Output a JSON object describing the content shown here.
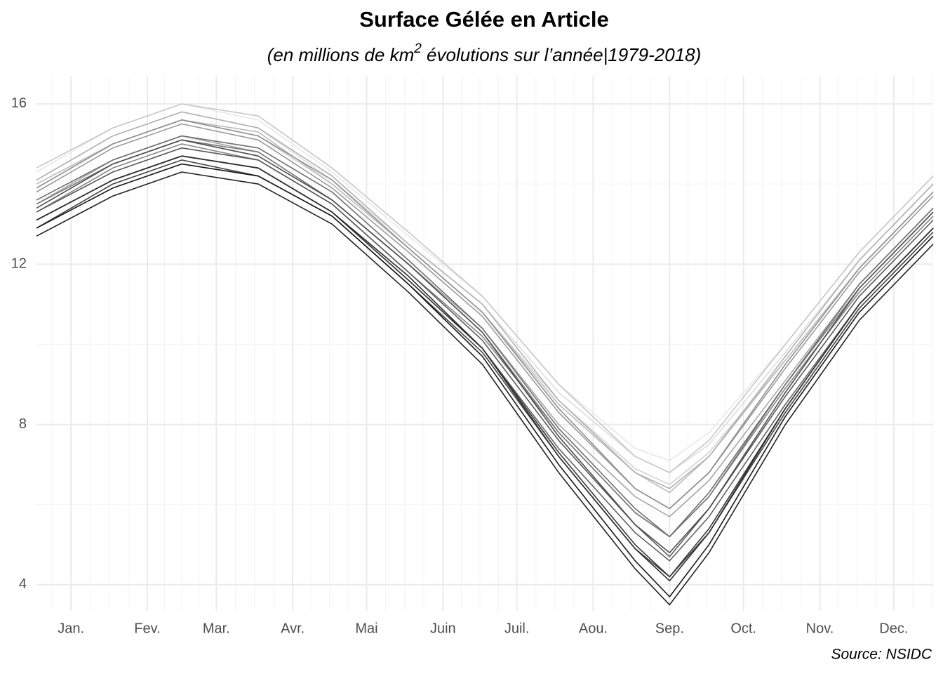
{
  "chart_data": {
    "type": "line",
    "title": "Surface Gélée en Article",
    "subtitle": [
      "(en millions de km",
      "2",
      " évolutions sur l’année|1979-2018)"
    ],
    "source": "Source: NSIDC",
    "x": [
      1,
      32,
      60,
      91,
      121,
      152,
      182,
      213,
      244,
      258,
      274,
      305,
      335,
      365
    ],
    "xlim": [
      1,
      365
    ],
    "xticks": [
      {
        "value": 15,
        "label": "Jan."
      },
      {
        "value": 46,
        "label": "Fev."
      },
      {
        "value": 74,
        "label": "Mar."
      },
      {
        "value": 105,
        "label": "Avr."
      },
      {
        "value": 135,
        "label": "Mai"
      },
      {
        "value": 166,
        "label": "Juin"
      },
      {
        "value": 196,
        "label": "Juil."
      },
      {
        "value": 227,
        "label": "Aou."
      },
      {
        "value": 258,
        "label": "Sep."
      },
      {
        "value": 288,
        "label": "Oct."
      },
      {
        "value": 319,
        "label": "Nov."
      },
      {
        "value": 349,
        "label": "Dec."
      }
    ],
    "ylim": [
      3.35,
      16.7
    ],
    "yticks": [
      4,
      8,
      12,
      16
    ],
    "yminor": [
      6,
      10,
      14
    ],
    "grid": true,
    "series": [
      {
        "color": "#e8e8e8",
        "values": [
          14.3,
          15.4,
          16.0,
          15.6,
          14.3,
          12.7,
          11.2,
          9.0,
          7.4,
          7.1,
          7.8,
          10.0,
          12.3,
          14.2
        ]
      },
      {
        "color": "#dddddd",
        "values": [
          14.1,
          15.2,
          15.8,
          15.4,
          14.1,
          12.5,
          11.0,
          8.8,
          7.2,
          6.8,
          7.5,
          9.8,
          12.1,
          14.0
        ]
      },
      {
        "color": "#d2d2d2",
        "values": [
          13.9,
          15.0,
          15.6,
          15.2,
          14.0,
          12.4,
          10.8,
          8.6,
          6.9,
          6.5,
          7.3,
          9.6,
          11.9,
          13.8
        ]
      },
      {
        "color": "#c7c7c7",
        "values": [
          14.4,
          15.4,
          16.0,
          15.7,
          14.4,
          12.8,
          11.2,
          9.0,
          7.2,
          6.8,
          7.6,
          10.0,
          12.3,
          14.2
        ]
      },
      {
        "color": "#bcbcbc",
        "values": [
          14.0,
          15.0,
          15.6,
          15.3,
          14.0,
          12.4,
          10.8,
          8.5,
          6.8,
          6.3,
          7.2,
          9.6,
          11.9,
          13.8
        ]
      },
      {
        "color": "#b1b1b1",
        "values": [
          14.1,
          15.2,
          15.8,
          15.4,
          14.2,
          12.5,
          11.0,
          8.6,
          6.8,
          6.4,
          7.2,
          9.7,
          12.1,
          14.0
        ]
      },
      {
        "color": "#a6a6a6",
        "values": [
          13.5,
          14.6,
          15.2,
          14.8,
          13.6,
          12.0,
          10.4,
          8.0,
          6.2,
          5.7,
          6.6,
          9.1,
          11.5,
          13.4
        ]
      },
      {
        "color": "#9b9b9b",
        "values": [
          13.8,
          14.9,
          15.5,
          15.1,
          13.9,
          12.3,
          10.7,
          8.3,
          6.4,
          5.9,
          6.8,
          9.4,
          11.8,
          13.7
        ]
      },
      {
        "color": "#909090",
        "values": [
          13.9,
          15.0,
          15.6,
          15.2,
          14.1,
          12.4,
          10.8,
          8.4,
          6.4,
          5.9,
          6.8,
          9.5,
          11.9,
          13.8
        ]
      },
      {
        "color": "#858585",
        "values": [
          13.3,
          14.4,
          15.0,
          14.6,
          13.5,
          11.8,
          10.2,
          7.8,
          5.8,
          5.2,
          6.2,
          8.9,
          11.3,
          13.2
        ]
      },
      {
        "color": "#7a7a7a",
        "values": [
          13.5,
          14.5,
          15.1,
          14.8,
          13.6,
          12.0,
          10.3,
          7.8,
          5.8,
          5.2,
          6.2,
          9.0,
          11.4,
          13.3
        ]
      },
      {
        "color": "#6f6f6f",
        "values": [
          13.6,
          14.6,
          15.2,
          14.9,
          13.8,
          12.1,
          10.4,
          7.9,
          5.9,
          5.2,
          6.3,
          9.0,
          11.5,
          13.4
        ]
      },
      {
        "color": "#646464",
        "values": [
          13.1,
          14.1,
          14.7,
          14.4,
          13.3,
          11.6,
          9.9,
          7.4,
          5.3,
          4.6,
          5.7,
          8.5,
          11.0,
          12.9
        ]
      },
      {
        "color": "#595959",
        "values": [
          13.3,
          14.3,
          14.9,
          14.6,
          13.5,
          11.8,
          10.1,
          7.6,
          5.5,
          4.7,
          5.9,
          8.7,
          11.2,
          13.1
        ]
      },
      {
        "color": "#4e4e4e",
        "values": [
          13.4,
          14.5,
          15.1,
          14.7,
          13.6,
          12.0,
          10.3,
          7.7,
          5.5,
          4.8,
          5.9,
          8.8,
          11.4,
          13.3
        ]
      },
      {
        "color": "#434343",
        "values": [
          12.9,
          14.0,
          14.6,
          14.2,
          13.2,
          11.5,
          9.8,
          7.2,
          4.9,
          4.2,
          5.3,
          8.3,
          10.9,
          12.8
        ]
      },
      {
        "color": "#383838",
        "values": [
          13.1,
          14.1,
          14.7,
          14.4,
          13.3,
          11.6,
          9.9,
          7.3,
          5.0,
          4.2,
          5.4,
          8.4,
          11.0,
          12.9
        ]
      },
      {
        "color": "#2d2d2d",
        "values": [
          13.1,
          14.1,
          14.7,
          14.4,
          13.3,
          11.7,
          9.9,
          7.2,
          4.9,
          4.1,
          5.3,
          8.4,
          11.0,
          12.9
        ]
      },
      {
        "color": "#222222",
        "values": [
          12.7,
          13.7,
          14.3,
          14.0,
          13.0,
          11.3,
          9.5,
          6.8,
          4.4,
          3.5,
          4.8,
          8.0,
          10.6,
          12.5
        ]
      },
      {
        "color": "#171717",
        "values": [
          12.9,
          13.9,
          14.5,
          14.2,
          13.2,
          11.5,
          9.7,
          7.0,
          4.6,
          3.7,
          5.0,
          8.2,
          10.8,
          12.7
        ]
      }
    ]
  }
}
